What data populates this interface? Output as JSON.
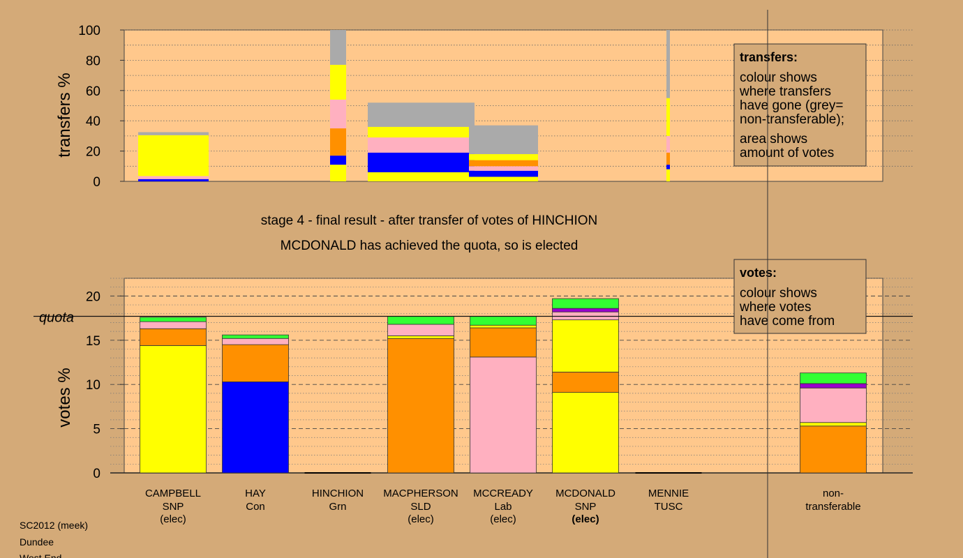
{
  "colors": {
    "background": "#d4aa78",
    "plot_area": "#ffc88c",
    "SNP": "#ffff00",
    "Con": "#0000ff",
    "SLD": "#ff9000",
    "Lab": "#ffb0c0",
    "Grn": "#33ff33",
    "TUSC": "#9900cc",
    "nontransferable": "#aaaaaa"
  },
  "header": {
    "stage_title": "stage 4 - final result - after transfer of votes of HINCHION",
    "stage_subtitle": "MCDONALD has achieved the quota, so is elected"
  },
  "footer": {
    "line1": "SC2012 (meek)",
    "line2": "Dundee",
    "line3": "West End"
  },
  "chart_data": [
    {
      "type": "bar",
      "id": "transfers",
      "ylabel": "transfers %",
      "ylim": [
        0,
        100
      ],
      "yticks": [
        0,
        20,
        40,
        60,
        80,
        100
      ],
      "legend": {
        "title": "transfers:",
        "lines": [
          "colour shows",
          "where transfers",
          "have gone (grey=",
          "non-transferable);"
        ],
        "lines2": [
          "area shows",
          "amount of votes"
        ]
      },
      "bars": [
        {
          "category": "CAMPBELL",
          "segments": [
            {
              "party": "Con",
              "value": 1.5
            },
            {
              "party": "Lab",
              "value": 2
            },
            {
              "party": "SNP",
              "value": 27
            },
            {
              "party": "nontransferable",
              "value": 2
            }
          ]
        },
        {
          "category": "HINCHION",
          "segments": [
            {
              "party": "SNP",
              "value": 11
            },
            {
              "party": "Con",
              "value": 6
            },
            {
              "party": "SLD",
              "value": 18
            },
            {
              "party": "Lab",
              "value": 19
            },
            {
              "party": "SNP",
              "value": 23
            },
            {
              "party": "nontransferable",
              "value": 23
            }
          ]
        },
        {
          "category": "MACPHERSON",
          "segments": [
            {
              "party": "SNP",
              "value": 6
            },
            {
              "party": "Con",
              "value": 13
            },
            {
              "party": "Lab",
              "value": 10
            },
            {
              "party": "SNP",
              "value": 7
            },
            {
              "party": "nontransferable",
              "value": 16
            }
          ]
        },
        {
          "category": "MCCREADY",
          "segments": [
            {
              "party": "SNP",
              "value": 3
            },
            {
              "party": "Con",
              "value": 4
            },
            {
              "party": "Lab",
              "value": 3
            },
            {
              "party": "SLD",
              "value": 4
            },
            {
              "party": "SNP",
              "value": 4
            },
            {
              "party": "nontransferable",
              "value": 19
            }
          ]
        },
        {
          "category": "MCDONALD",
          "segments": [
            {
              "party": "SNP",
              "value": 8
            },
            {
              "party": "Con",
              "value": 3
            },
            {
              "party": "SLD",
              "value": 8
            },
            {
              "party": "Lab",
              "value": 11
            },
            {
              "party": "SNP",
              "value": 25
            },
            {
              "party": "nontransferable",
              "value": 45
            }
          ]
        }
      ]
    },
    {
      "type": "bar",
      "id": "votes",
      "ylabel": "votes %",
      "ylim": [
        0,
        22
      ],
      "yticks": [
        0,
        5,
        10,
        15,
        20
      ],
      "quota": 17.7,
      "quota_label": "quota",
      "legend": {
        "title": "votes:",
        "lines": [
          "colour shows",
          "where votes",
          "have come from"
        ]
      },
      "candidates": [
        {
          "name": "CAMPBELL",
          "party": "SNP",
          "status": "(elec)",
          "segments": [
            {
              "party": "SNP",
              "value": 14.4
            },
            {
              "party": "SLD",
              "value": 1.9
            },
            {
              "party": "Lab",
              "value": 0.8
            },
            {
              "party": "Grn",
              "value": 0.5
            }
          ]
        },
        {
          "name": "HAY",
          "party": "Con",
          "status": "",
          "segments": [
            {
              "party": "Con",
              "value": 10.3
            },
            {
              "party": "SLD",
              "value": 4.2
            },
            {
              "party": "Lab",
              "value": 0.7
            },
            {
              "party": "Grn",
              "value": 0.4
            }
          ]
        },
        {
          "name": "HINCHION",
          "party": "Grn",
          "status": "",
          "segments": []
        },
        {
          "name": "MACPHERSON",
          "party": "SLD",
          "status": "(elec)",
          "segments": [
            {
              "party": "SLD",
              "value": 15.2
            },
            {
              "party": "SNP",
              "value": 0.3
            },
            {
              "party": "Lab",
              "value": 1.3
            },
            {
              "party": "Grn",
              "value": 0.9
            }
          ]
        },
        {
          "name": "MCCREADY",
          "party": "Lab",
          "status": "(elec)",
          "segments": [
            {
              "party": "Lab",
              "value": 13.1
            },
            {
              "party": "SLD",
              "value": 3.3
            },
            {
              "party": "SNP",
              "value": 0.3
            },
            {
              "party": "Grn",
              "value": 1.0
            }
          ]
        },
        {
          "name": "MCDONALD",
          "party": "SNP",
          "status": "(elec)",
          "segments": [
            {
              "party": "SNP",
              "value": 9.1
            },
            {
              "party": "SLD",
              "value": 2.3
            },
            {
              "party": "SNP",
              "value": 5.9
            },
            {
              "party": "Lab",
              "value": 0.9
            },
            {
              "party": "TUSC",
              "value": 0.4
            },
            {
              "party": "Grn",
              "value": 1.1
            }
          ]
        },
        {
          "name": "MENNIE",
          "party": "TUSC",
          "status": "",
          "segments": []
        },
        {
          "name": "non-",
          "party": "transferable",
          "status": "",
          "segments": [
            {
              "party": "SLD",
              "value": 5.3
            },
            {
              "party": "SNP",
              "value": 0.4
            },
            {
              "party": "Lab",
              "value": 3.9
            },
            {
              "party": "TUSC",
              "value": 0.5
            },
            {
              "party": "Grn",
              "value": 1.2
            }
          ]
        }
      ]
    }
  ]
}
